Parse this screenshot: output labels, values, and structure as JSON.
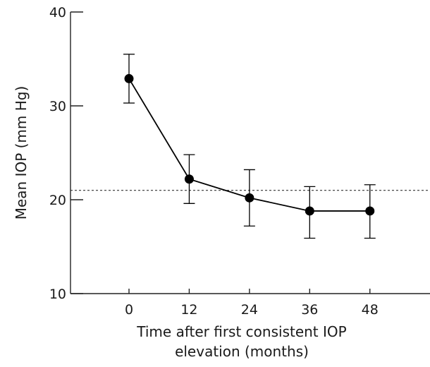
{
  "chart_data": {
    "type": "line",
    "title": "",
    "xlabel_lines": [
      "Time after first consistent IOP",
      "elevation (months)"
    ],
    "ylabel": "Mean IOP (mm Hg)",
    "x_ticks": [
      "0",
      "12",
      "24",
      "36",
      "48"
    ],
    "y_ticks": [
      "10",
      "20",
      "30",
      "40"
    ],
    "xlim": [
      -12,
      58
    ],
    "ylim": [
      10,
      40
    ],
    "grid": false,
    "legend": "none",
    "reference_line": {
      "y": 21,
      "style": "dotted"
    },
    "series": [
      {
        "x": [
          0,
          12,
          24,
          36,
          48
        ],
        "y": [
          32.9,
          22.2,
          20.2,
          18.8,
          18.8
        ],
        "error_low": [
          30.3,
          19.6,
          17.2,
          15.9,
          15.9
        ],
        "error_high": [
          35.5,
          24.8,
          23.2,
          21.4,
          21.6
        ],
        "color": "#000000"
      }
    ]
  }
}
